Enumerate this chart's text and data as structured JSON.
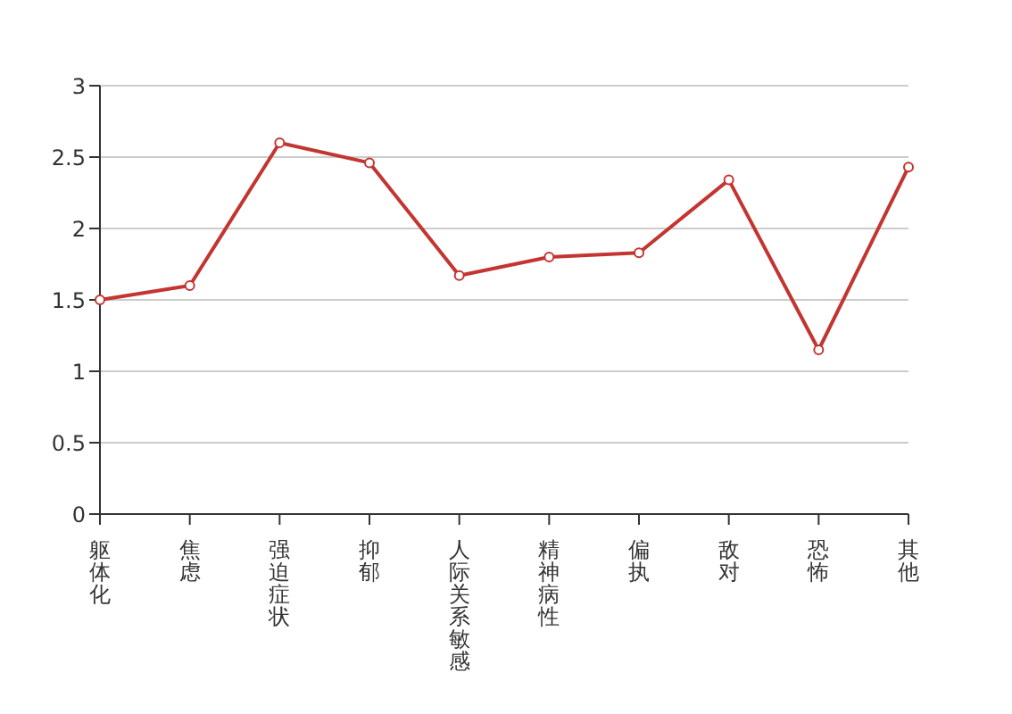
{
  "chart_data": {
    "type": "line",
    "categories": [
      "躯体化",
      "焦虑",
      "强迫症状",
      "抑郁",
      "人际关系敏感",
      "精神病性",
      "偏执",
      "敌对",
      "恐怖",
      "其他"
    ],
    "series": [
      {
        "color": "#c23531",
        "values": [
          1.5,
          1.6,
          2.6,
          2.46,
          1.67,
          1.8,
          1.83,
          2.34,
          1.15,
          2.43
        ]
      }
    ],
    "ylim": [
      0,
      3
    ],
    "yticks": [
      0,
      0.5,
      1,
      1.5,
      2,
      2.5,
      3
    ],
    "grid": "y",
    "legend": false,
    "marker": "circle",
    "line_style": "solid"
  }
}
